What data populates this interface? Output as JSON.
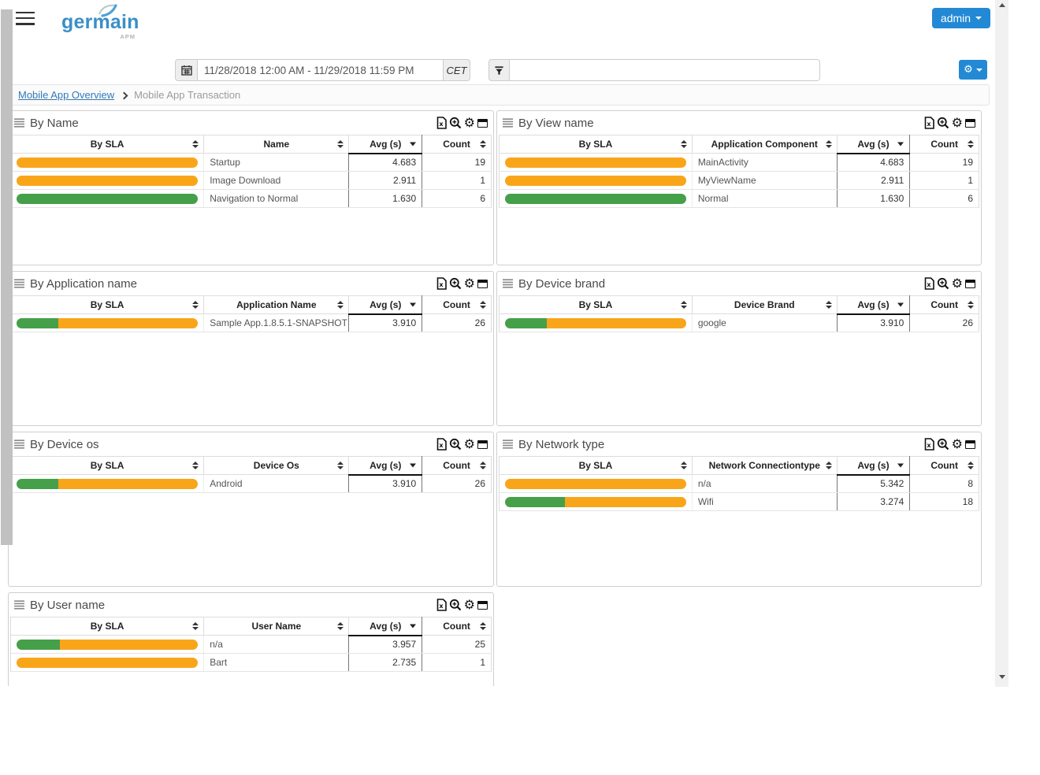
{
  "header": {
    "logo_text": "germain",
    "logo_subtext": "APM",
    "admin_label": "admin"
  },
  "toolbar": {
    "date_range": "11/28/2018 12:00 AM - 11/29/2018 11:59 PM",
    "timezone": "CET",
    "filter_value": ""
  },
  "breadcrumb": {
    "parent": "Mobile App Overview",
    "current": "Mobile App Transaction"
  },
  "colors": {
    "accent_blue": "#2389d5",
    "sla_warn_orange": "#f9a51a",
    "sla_ok_green": "#45a049",
    "link_blue": "#3279b7"
  },
  "icons": {
    "menu": "hamburger-icon",
    "date": "calendar-icon",
    "filter": "funnel-icon",
    "settings": "gear-icon",
    "breadcrumb_separator": "chevron-right-icon",
    "panel_title": "list-icon",
    "panel_actions": [
      "excel-export-icon",
      "zoom-icon",
      "gear-icon",
      "window-icon"
    ],
    "gear_glyph": "⚙"
  },
  "sort": {
    "sorted_column": "Avg (s)",
    "direction": "desc"
  },
  "panels": [
    {
      "title": "By Name",
      "columns": [
        "By SLA",
        "Name",
        "Avg (s)",
        "Count"
      ],
      "rows": [
        {
          "sla_green_pct": 0,
          "sla_orange_pct": 100,
          "name": "Startup",
          "avg": "4.683",
          "count": "19"
        },
        {
          "sla_green_pct": 0,
          "sla_orange_pct": 100,
          "name": "Image Download",
          "avg": "2.911",
          "count": "1"
        },
        {
          "sla_green_pct": 100,
          "sla_orange_pct": 0,
          "name": "Navigation to Normal",
          "avg": "1.630",
          "count": "6"
        }
      ]
    },
    {
      "title": "By View name",
      "columns": [
        "By SLA",
        "Application Component",
        "Avg (s)",
        "Count"
      ],
      "rows": [
        {
          "sla_green_pct": 0,
          "sla_orange_pct": 100,
          "name": "MainActivity",
          "avg": "4.683",
          "count": "19"
        },
        {
          "sla_green_pct": 0,
          "sla_orange_pct": 100,
          "name": "MyViewName",
          "avg": "2.911",
          "count": "1"
        },
        {
          "sla_green_pct": 100,
          "sla_orange_pct": 0,
          "name": "Normal",
          "avg": "1.630",
          "count": "6"
        }
      ]
    },
    {
      "title": "By Application name",
      "columns": [
        "By SLA",
        "Application Name",
        "Avg (s)",
        "Count"
      ],
      "rows": [
        {
          "sla_green_pct": 23,
          "sla_orange_pct": 77,
          "name": "Sample App.1.8.5.1-SNAPSHOT",
          "avg": "3.910",
          "count": "26"
        }
      ]
    },
    {
      "title": "By Device brand",
      "columns": [
        "By SLA",
        "Device Brand",
        "Avg (s)",
        "Count"
      ],
      "rows": [
        {
          "sla_green_pct": 23,
          "sla_orange_pct": 77,
          "name": "google",
          "avg": "3.910",
          "count": "26"
        }
      ]
    },
    {
      "title": "By Device os",
      "columns": [
        "By SLA",
        "Device Os",
        "Avg (s)",
        "Count"
      ],
      "rows": [
        {
          "sla_green_pct": 23,
          "sla_orange_pct": 77,
          "name": "Android",
          "avg": "3.910",
          "count": "26"
        }
      ]
    },
    {
      "title": "By Network type",
      "columns": [
        "By SLA",
        "Network Connectiontype",
        "Avg (s)",
        "Count"
      ],
      "rows": [
        {
          "sla_green_pct": 0,
          "sla_orange_pct": 100,
          "name": "n/a",
          "avg": "5.342",
          "count": "8"
        },
        {
          "sla_green_pct": 33,
          "sla_orange_pct": 67,
          "name": "Wifi",
          "avg": "3.274",
          "count": "18"
        }
      ]
    },
    {
      "title": "By User name",
      "columns": [
        "By SLA",
        "User Name",
        "Avg (s)",
        "Count"
      ],
      "rows": [
        {
          "sla_green_pct": 24,
          "sla_orange_pct": 76,
          "name": "n/a",
          "avg": "3.957",
          "count": "25"
        },
        {
          "sla_green_pct": 0,
          "sla_orange_pct": 100,
          "name": "Bart",
          "avg": "2.735",
          "count": "1"
        }
      ]
    }
  ]
}
